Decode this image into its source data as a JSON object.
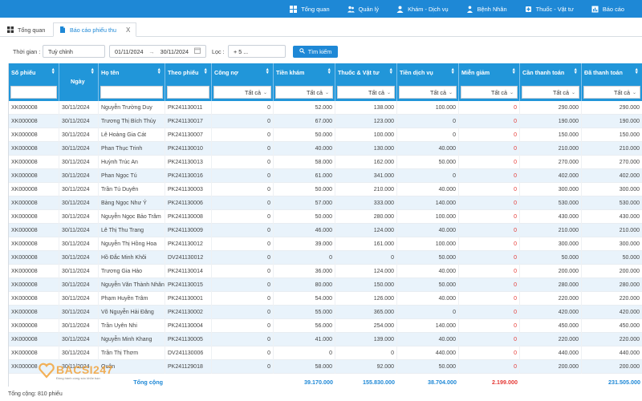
{
  "topnav": [
    {
      "label": "Tổng quan",
      "icon": "grid-icon"
    },
    {
      "label": "Quản lý",
      "icon": "users-icon"
    },
    {
      "label": "Khám - Dịch vụ",
      "icon": "people-icon"
    },
    {
      "label": "Bệnh Nhân",
      "icon": "patient-icon"
    },
    {
      "label": "Thuốc - Vật tư",
      "icon": "medicine-icon"
    },
    {
      "label": "Báo cáo",
      "icon": "report-icon"
    }
  ],
  "tabs": [
    {
      "label": "Tổng quan"
    },
    {
      "label": "Báo cáo phiếu thu",
      "close": "X"
    }
  ],
  "filter": {
    "time_label": "Thời gian :",
    "time_value": "Tuỳ chỉnh",
    "date_from": "01/11/2024",
    "arrow": "→",
    "date_to": "30/11/2024",
    "filter_label": "Lọc :",
    "filter_value": "+ 5 ...",
    "search_button": "Tìm kiếm"
  },
  "columns": [
    "Số phiếu",
    "Ngày",
    "Họ tên",
    "Theo phiếu",
    "Công nợ",
    "Tiền khám",
    "Thuốc & Vật tư",
    "Tiền dịch vụ",
    "Miễn giảm",
    "Cần thanh toán",
    "Đã thanh toán"
  ],
  "filter_all": "Tất cả",
  "rows": [
    [
      "XK000008",
      "30/11/2024",
      "Nguyễn Trường Duy",
      "PK241130011",
      "0",
      "52.000",
      "138.000",
      "100.000",
      "0",
      "290.000",
      "290.000"
    ],
    [
      "XK000008",
      "30/11/2024",
      "Trương Thị Bích Thủy",
      "PK241130017",
      "0",
      "67.000",
      "123.000",
      "0",
      "0",
      "190.000",
      "190.000"
    ],
    [
      "XK000008",
      "30/11/2024",
      "Lê Hoàng Gia Cát",
      "PK241130007",
      "0",
      "50.000",
      "100.000",
      "0",
      "0",
      "150.000",
      "150.000"
    ],
    [
      "XK000008",
      "30/11/2024",
      "Phan Thục Trinh",
      "PK241130010",
      "0",
      "40.000",
      "130.000",
      "40.000",
      "0",
      "210.000",
      "210.000"
    ],
    [
      "XK000008",
      "30/11/2024",
      "Huỳnh Trúc An",
      "PK241130013",
      "0",
      "58.000",
      "162.000",
      "50.000",
      "0",
      "270.000",
      "270.000"
    ],
    [
      "XK000008",
      "30/11/2024",
      "Phan Ngọc Tú",
      "PK241130016",
      "0",
      "61.000",
      "341.000",
      "0",
      "0",
      "402.000",
      "402.000"
    ],
    [
      "XK000008",
      "30/11/2024",
      "Trần Tú Duyên",
      "PK241130003",
      "0",
      "50.000",
      "210.000",
      "40.000",
      "0",
      "300.000",
      "300.000"
    ],
    [
      "XK000008",
      "30/11/2024",
      "Bàng Ngọc Như Ý",
      "PK241130006",
      "0",
      "57.000",
      "333.000",
      "140.000",
      "0",
      "530.000",
      "530.000"
    ],
    [
      "XK000008",
      "30/11/2024",
      "Nguyễn Ngọc Bảo Trâm",
      "PK241130008",
      "0",
      "50.000",
      "280.000",
      "100.000",
      "0",
      "430.000",
      "430.000"
    ],
    [
      "XK000008",
      "30/11/2024",
      "Lê Thị Thu Trang",
      "PK241130009",
      "0",
      "46.000",
      "124.000",
      "40.000",
      "0",
      "210.000",
      "210.000"
    ],
    [
      "XK000008",
      "30/11/2024",
      "Nguyễn Thị Hồng Hoa",
      "PK241130012",
      "0",
      "39.000",
      "161.000",
      "100.000",
      "0",
      "300.000",
      "300.000"
    ],
    [
      "XK000008",
      "30/11/2024",
      "Hồ Đắc Minh Khôi",
      "DV241130012",
      "0",
      "0",
      "0",
      "50.000",
      "0",
      "50.000",
      "50.000"
    ],
    [
      "XK000008",
      "30/11/2024",
      "Trương Gia Hảo",
      "PK241130014",
      "0",
      "36.000",
      "124.000",
      "40.000",
      "0",
      "200.000",
      "200.000"
    ],
    [
      "XK000008",
      "30/11/2024",
      "Nguyễn Văn Thành Nhân",
      "PK241130015",
      "0",
      "80.000",
      "150.000",
      "50.000",
      "0",
      "280.000",
      "280.000"
    ],
    [
      "XK000008",
      "30/11/2024",
      "Phạm Huyền Trâm",
      "PK241130001",
      "0",
      "54.000",
      "126.000",
      "40.000",
      "0",
      "220.000",
      "220.000"
    ],
    [
      "XK000008",
      "30/11/2024",
      "Võ Nguyễn Hải Đăng",
      "PK241130002",
      "0",
      "55.000",
      "365.000",
      "0",
      "0",
      "420.000",
      "420.000"
    ],
    [
      "XK000008",
      "30/11/2024",
      "Trần Uyên Nhi",
      "PK241130004",
      "0",
      "56.000",
      "254.000",
      "140.000",
      "0",
      "450.000",
      "450.000"
    ],
    [
      "XK000008",
      "30/11/2024",
      "Nguyễn Minh Khang",
      "PK241130005",
      "0",
      "41.000",
      "139.000",
      "40.000",
      "0",
      "220.000",
      "220.000"
    ],
    [
      "XK000008",
      "30/11/2024",
      "Trần Thị Thơm",
      "DV241130006",
      "0",
      "0",
      "0",
      "440.000",
      "0",
      "440.000",
      "440.000"
    ],
    [
      "XK000008",
      "30/11/2024",
      "Quân",
      "PK241129018",
      "0",
      "58.000",
      "92.000",
      "50.000",
      "0",
      "200.000",
      "200.000"
    ]
  ],
  "totals": {
    "label": "Tổng cộng",
    "tien_kham": "39.170.000",
    "thuoc_vat_tu": "155.830.000",
    "tien_dich_vu": "38.704.000",
    "mien_giam": "2.199.000",
    "da_thanh_toan": "231.505.000"
  },
  "footer": "Tổng cộng: 810 phiếu",
  "logo": {
    "text": "BACSI247",
    "tagline": "Đồng hành cùng sức khỏe bạn"
  },
  "colors": {
    "primary": "#1e88d6",
    "header": "#2196d9",
    "alt_row": "#e9f3fb",
    "negative": "#e53935"
  }
}
